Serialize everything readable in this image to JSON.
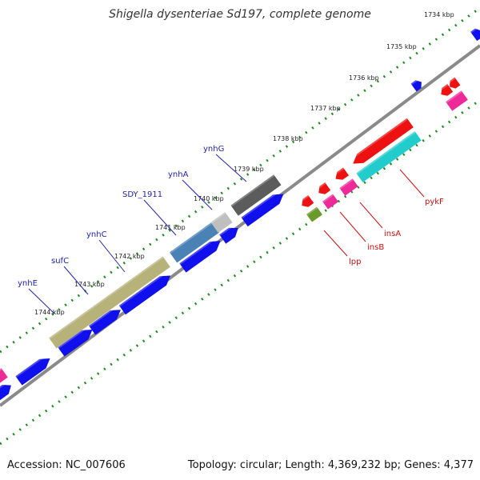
{
  "title": "Shigella dysenteriae Sd197, complete genome",
  "accession": "Accession: NC_007606",
  "topology": "Topology: circular; Length: 4,369,232 bp; Genes: 4,377",
  "ticks": [
    "1734 kbp",
    "1735 kbp",
    "1736 kbp",
    "1737 kbp",
    "1738 kbp",
    "1739 kbp",
    "1740 kbp",
    "1741 kbp",
    "1742 kbp",
    "1743 kbp",
    "1744 kbp"
  ],
  "colors": {
    "backbone": "#8a8a8a",
    "dots": "#1e8a1e",
    "cds": "#1010ee",
    "label_fwd": "#2222aa",
    "label_rev": "#cc1111",
    "olive": "#b7b27a",
    "steel": "#4a82b6",
    "silver": "#bfbfbf",
    "darkgray": "#5c5c5c",
    "red": "#ee1111",
    "cyan": "#22cccc",
    "pink": "#ee2a99",
    "green": "#6a9a2a"
  },
  "gene_labels": {
    "forward": [
      "ynhE",
      "sufC",
      "ynhC",
      "SDY_1911",
      "ynhA",
      "ynhG"
    ],
    "reverse": [
      "lpp",
      "insB",
      "insA",
      "pykF"
    ]
  }
}
